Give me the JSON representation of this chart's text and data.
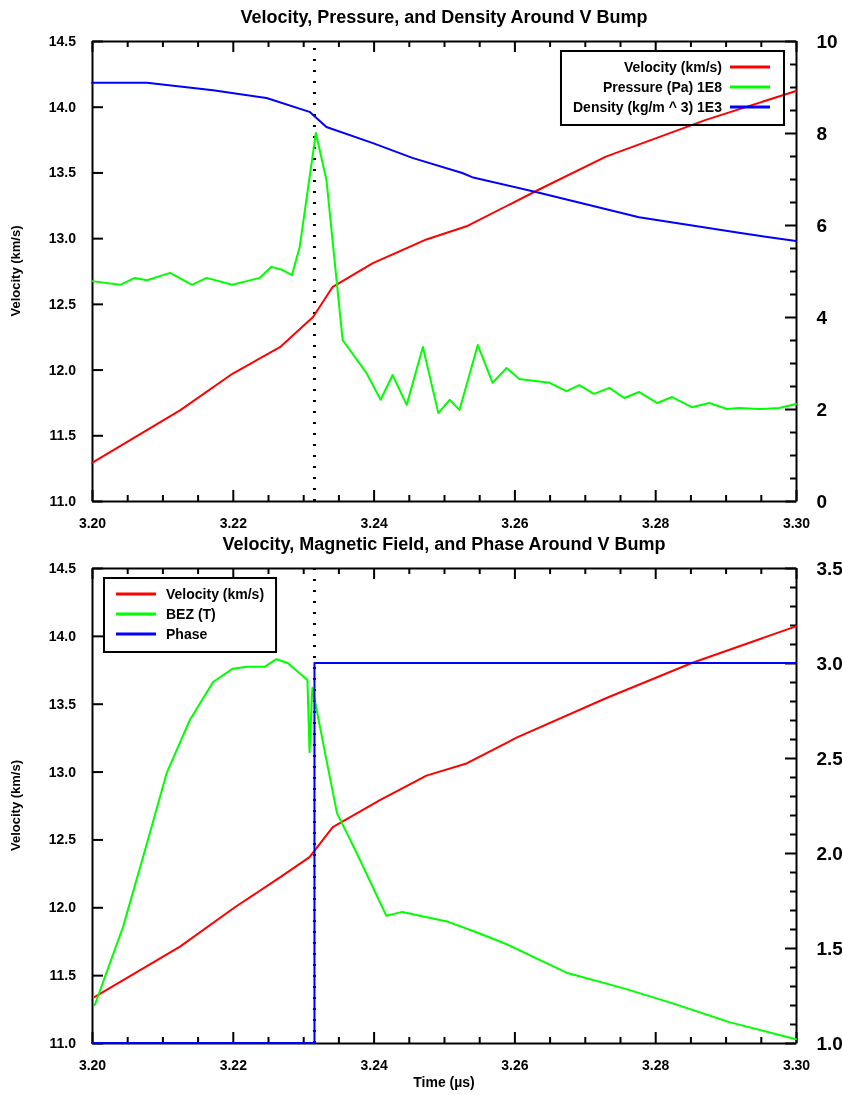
{
  "chart_data": [
    {
      "type": "line",
      "title": "Velocity, Pressure, and Density Around V Bump",
      "ylabel": "Velocity (km/s)",
      "legend": "top right",
      "line_style": "solid",
      "grid": false,
      "xlim": [
        3.2,
        3.3
      ],
      "xticks": [
        {
          "value": 3.2,
          "label": "3.20"
        },
        {
          "value": 3.205,
          "label": null
        },
        {
          "value": 3.21,
          "label": null
        },
        {
          "value": 3.215,
          "label": null
        },
        {
          "value": 3.22,
          "label": "3.22"
        },
        {
          "value": 3.225,
          "label": null
        },
        {
          "value": 3.23,
          "label": null
        },
        {
          "value": 3.235,
          "label": null
        },
        {
          "value": 3.24,
          "label": "3.24"
        },
        {
          "value": 3.245,
          "label": null
        },
        {
          "value": 3.25,
          "label": null
        },
        {
          "value": 3.255,
          "label": null
        },
        {
          "value": 3.26,
          "label": "3.26"
        },
        {
          "value": 3.265,
          "label": null
        },
        {
          "value": 3.27,
          "label": null
        },
        {
          "value": 3.275,
          "label": null
        },
        {
          "value": 3.28,
          "label": "3.28"
        },
        {
          "value": 3.285,
          "label": null
        },
        {
          "value": 3.29,
          "label": null
        },
        {
          "value": 3.295,
          "label": null
        },
        {
          "value": 3.3,
          "label": "3.30"
        }
      ],
      "ylim": [
        11,
        14.5
      ],
      "yticks": [
        {
          "value": 11,
          "label": "11.0"
        },
        {
          "value": 11.5,
          "label": "11.5"
        },
        {
          "value": 12,
          "label": "12.0"
        },
        {
          "value": 12.5,
          "label": "12.5"
        },
        {
          "value": 13,
          "label": "13.0"
        },
        {
          "value": 13.5,
          "label": "13.5"
        },
        {
          "value": 14,
          "label": "14.0"
        },
        {
          "value": 14.5,
          "label": "14.5"
        }
      ],
      "y2lim": [
        0,
        10
      ],
      "y2ticks": [
        0,
        {
          "value": 0.5,
          "label": null
        },
        {
          "value": 1,
          "label": null
        },
        {
          "value": 1.5,
          "label": null
        },
        2,
        {
          "value": 2.5,
          "label": null
        },
        {
          "value": 3,
          "label": null
        },
        {
          "value": 3.5,
          "label": null
        },
        4,
        {
          "value": 4.5,
          "label": null
        },
        {
          "value": 5,
          "label": null
        },
        {
          "value": 5.5,
          "label": null
        },
        6,
        {
          "value": 6.5,
          "label": null
        },
        {
          "value": 7,
          "label": null
        },
        {
          "value": 7.5,
          "label": null
        },
        8,
        {
          "value": 8.5,
          "label": null
        },
        {
          "value": 9,
          "label": null
        },
        {
          "value": 9.5,
          "label": null
        },
        10
      ],
      "ref_lines": [
        {
          "axis": "x",
          "value": 3.2316,
          "line_style": "dotted",
          "color": "#000000"
        }
      ],
      "series": [
        {
          "name": "Velocity (km/s)",
          "color": "#ff0000",
          "x": [
            3.2,
            3.2125,
            3.22,
            3.2267,
            3.2314,
            3.2342,
            3.2399,
            3.2475,
            3.2532,
            3.2635,
            3.273,
            3.2872,
            3.3
          ],
          "values": [
            11.29,
            11.69,
            11.97,
            12.17,
            12.4,
            12.63,
            12.81,
            12.99,
            13.09,
            13.37,
            13.62,
            13.9,
            14.12
          ]
        },
        {
          "name": "Pressure (Pa) 1E8",
          "color": "#00ff00",
          "axis": "y2",
          "x": [
            3.2,
            3.204,
            3.2061,
            3.2078,
            3.2111,
            3.2142,
            3.2163,
            3.2199,
            3.222,
            3.2238,
            3.2255,
            3.2271,
            3.2284,
            3.2295,
            3.2318,
            3.2333,
            3.2356,
            3.239,
            3.241,
            3.2427,
            3.2447,
            3.247,
            3.2492,
            3.2508,
            3.2522,
            3.2548,
            3.2569,
            3.2589,
            3.2607,
            3.265,
            3.2674,
            3.2692,
            3.2713,
            3.2735,
            3.2756,
            3.2777,
            3.2803,
            3.2824,
            3.2852,
            3.2877,
            3.2902,
            3.2919,
            3.2948,
            3.2976,
            3.3
          ],
          "values": [
            4.78,
            4.7,
            4.85,
            4.8,
            4.96,
            4.7,
            4.85,
            4.7,
            4.78,
            4.85,
            5.09,
            5.02,
            4.91,
            5.52,
            8.0,
            6.98,
            3.5,
            2.78,
            2.2,
            2.74,
            2.09,
            3.35,
            1.91,
            2.2,
            1.98,
            3.39,
            2.57,
            2.89,
            2.65,
            2.57,
            2.39,
            2.52,
            2.33,
            2.46,
            2.24,
            2.37,
            2.13,
            2.26,
            2.04,
            2.13,
            2.0,
            2.02,
            2.0,
            2.02,
            2.11
          ]
        },
        {
          "name": "Density (kg/m ^ 3) 1E3",
          "color": "#0000ff",
          "axis": "y2",
          "x": [
            3.2,
            3.2078,
            3.2172,
            3.2248,
            3.2309,
            3.2333,
            3.2399,
            3.2455,
            3.2526,
            3.254,
            3.2635,
            3.2777,
            3.2919,
            3.3
          ],
          "values": [
            9.09,
            9.09,
            8.93,
            8.76,
            8.46,
            8.13,
            7.78,
            7.46,
            7.13,
            7.04,
            6.7,
            6.17,
            5.83,
            5.65
          ]
        }
      ]
    },
    {
      "type": "line",
      "title": "Velocity, Magnetic Field, and Phase Around V Bump",
      "xlabel": "Time (µs)",
      "ylabel": "Velocity (km/s)",
      "legend": "top left",
      "line_style": "solid",
      "grid": false,
      "xlim": [
        3.2,
        3.3
      ],
      "xticks": [
        {
          "value": 3.2,
          "label": "3.20"
        },
        {
          "value": 3.205,
          "label": null
        },
        {
          "value": 3.21,
          "label": null
        },
        {
          "value": 3.215,
          "label": null
        },
        {
          "value": 3.22,
          "label": "3.22"
        },
        {
          "value": 3.225,
          "label": null
        },
        {
          "value": 3.23,
          "label": null
        },
        {
          "value": 3.235,
          "label": null
        },
        {
          "value": 3.24,
          "label": "3.24"
        },
        {
          "value": 3.245,
          "label": null
        },
        {
          "value": 3.25,
          "label": null
        },
        {
          "value": 3.255,
          "label": null
        },
        {
          "value": 3.26,
          "label": "3.26"
        },
        {
          "value": 3.265,
          "label": null
        },
        {
          "value": 3.27,
          "label": null
        },
        {
          "value": 3.275,
          "label": null
        },
        {
          "value": 3.28,
          "label": "3.28"
        },
        {
          "value": 3.285,
          "label": null
        },
        {
          "value": 3.29,
          "label": null
        },
        {
          "value": 3.295,
          "label": null
        },
        {
          "value": 3.3,
          "label": "3.30"
        }
      ],
      "ylim": [
        11,
        14.5
      ],
      "yticks": [
        {
          "value": 11,
          "label": "11.0"
        },
        {
          "value": 11.5,
          "label": "11.5"
        },
        {
          "value": 12,
          "label": "12.0"
        },
        {
          "value": 12.5,
          "label": "12.5"
        },
        {
          "value": 13,
          "label": "13.0"
        },
        {
          "value": 13.5,
          "label": "13.5"
        },
        {
          "value": 14,
          "label": "14.0"
        },
        {
          "value": 14.5,
          "label": "14.5"
        }
      ],
      "y2lim": [
        1,
        3.5
      ],
      "y2ticks": [
        {
          "value": 1,
          "label": "1.0"
        },
        {
          "value": 1.1,
          "label": null
        },
        {
          "value": 1.2,
          "label": null
        },
        {
          "value": 1.3,
          "label": null
        },
        {
          "value": 1.4,
          "label": null
        },
        {
          "value": 1.5,
          "label": "1.5"
        },
        {
          "value": 1.6,
          "label": null
        },
        {
          "value": 1.7,
          "label": null
        },
        {
          "value": 1.8,
          "label": null
        },
        {
          "value": 1.9,
          "label": null
        },
        {
          "value": 2,
          "label": "2.0"
        },
        {
          "value": 2.1,
          "label": null
        },
        {
          "value": 2.2,
          "label": null
        },
        {
          "value": 2.3,
          "label": null
        },
        {
          "value": 2.4,
          "label": null
        },
        {
          "value": 2.5,
          "label": "2.5"
        },
        {
          "value": 2.6,
          "label": null
        },
        {
          "value": 2.7,
          "label": null
        },
        {
          "value": 2.8,
          "label": null
        },
        {
          "value": 2.9,
          "label": null
        },
        {
          "value": 3,
          "label": "3.0"
        },
        {
          "value": 3.1,
          "label": null
        },
        {
          "value": 3.2,
          "label": null
        },
        {
          "value": 3.3,
          "label": null
        },
        {
          "value": 3.4,
          "label": null
        },
        {
          "value": 3.5,
          "label": "3.5"
        }
      ],
      "ref_lines": [
        {
          "axis": "x",
          "value": 3.2316,
          "line_style": "dotted",
          "color": "#000000"
        }
      ],
      "series": [
        {
          "name": "Velocity (km/s)",
          "color": "#ff0000",
          "x": [
            3.2004,
            3.2125,
            3.2203,
            3.2267,
            3.2309,
            3.2342,
            3.2409,
            3.2475,
            3.2532,
            3.2603,
            3.273,
            3.2852,
            3.3
          ],
          "values": [
            11.34,
            11.71,
            12.0,
            12.22,
            12.37,
            12.59,
            12.79,
            12.97,
            13.06,
            13.25,
            13.54,
            13.8,
            14.07
          ]
        },
        {
          "name": "BEZ (T)",
          "color": "#00ff00",
          "axis": "y2",
          "x": [
            3.2004,
            3.2044,
            3.2078,
            3.2106,
            3.2139,
            3.2172,
            3.22,
            3.222,
            3.2245,
            3.2262,
            3.2278,
            3.2306,
            3.2309,
            3.2313,
            3.2333,
            3.2348,
            3.2376,
            3.2399,
            3.2418,
            3.2441,
            3.2504,
            3.2548,
            3.2589,
            3.2674,
            3.2753,
            3.2824,
            3.2905,
            3.3
          ],
          "values": [
            1.2,
            1.61,
            2.05,
            2.42,
            2.7,
            2.9,
            2.97,
            2.98,
            2.98,
            3.02,
            3.0,
            2.91,
            2.53,
            2.87,
            2.49,
            2.21,
            2.0,
            1.82,
            1.67,
            1.69,
            1.64,
            1.58,
            1.52,
            1.37,
            1.29,
            1.21,
            1.11,
            1.02
          ]
        },
        {
          "name": "Phase",
          "color": "#0000ff",
          "axis": "y2",
          "x": [
            3.2,
            3.2316,
            3.2316,
            3.3
          ],
          "values": [
            1,
            1,
            3,
            3
          ]
        }
      ]
    }
  ]
}
